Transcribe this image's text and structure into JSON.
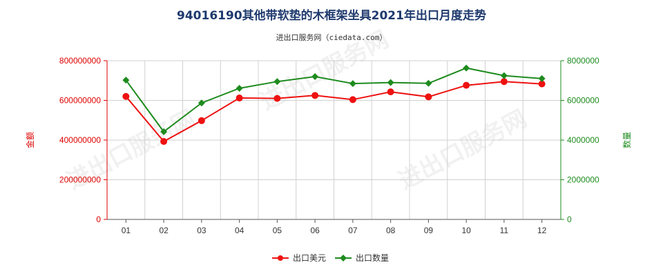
{
  "chart_data": {
    "type": "line",
    "title": "94016190其他带软垫的木框架坐具2021年出口月度走势",
    "subtitle": "进出口服务网（ciedata.com）",
    "categories": [
      "01",
      "02",
      "03",
      "04",
      "05",
      "06",
      "07",
      "08",
      "09",
      "10",
      "11",
      "12"
    ],
    "y_left": {
      "label": "金额",
      "ylim": [
        0,
        800000000
      ],
      "ticks": [
        "0",
        "200000000",
        "400000000",
        "600000000",
        "800000000"
      ],
      "color": "#dd0000"
    },
    "y_right": {
      "label": "数量",
      "ylim": [
        0,
        8000000
      ],
      "ticks": [
        "0",
        "2000000",
        "4000000",
        "6000000",
        "8000000"
      ],
      "color": "#1e8b1e"
    },
    "series": [
      {
        "name": "出口美元",
        "axis": "left",
        "color": "#ee1111",
        "marker": "circle",
        "values": [
          620000000,
          393000000,
          498000000,
          612000000,
          610000000,
          625000000,
          604000000,
          643000000,
          618000000,
          676000000,
          695000000,
          683000000
        ]
      },
      {
        "name": "出口数量",
        "axis": "right",
        "color": "#1e8b1e",
        "marker": "diamond",
        "values": [
          7020000,
          4420000,
          5870000,
          6610000,
          6950000,
          7200000,
          6850000,
          6900000,
          6860000,
          7630000,
          7250000,
          7100000
        ]
      }
    ],
    "grid": true,
    "legend_position": "bottom-center",
    "watermark": "进出口服务网"
  }
}
